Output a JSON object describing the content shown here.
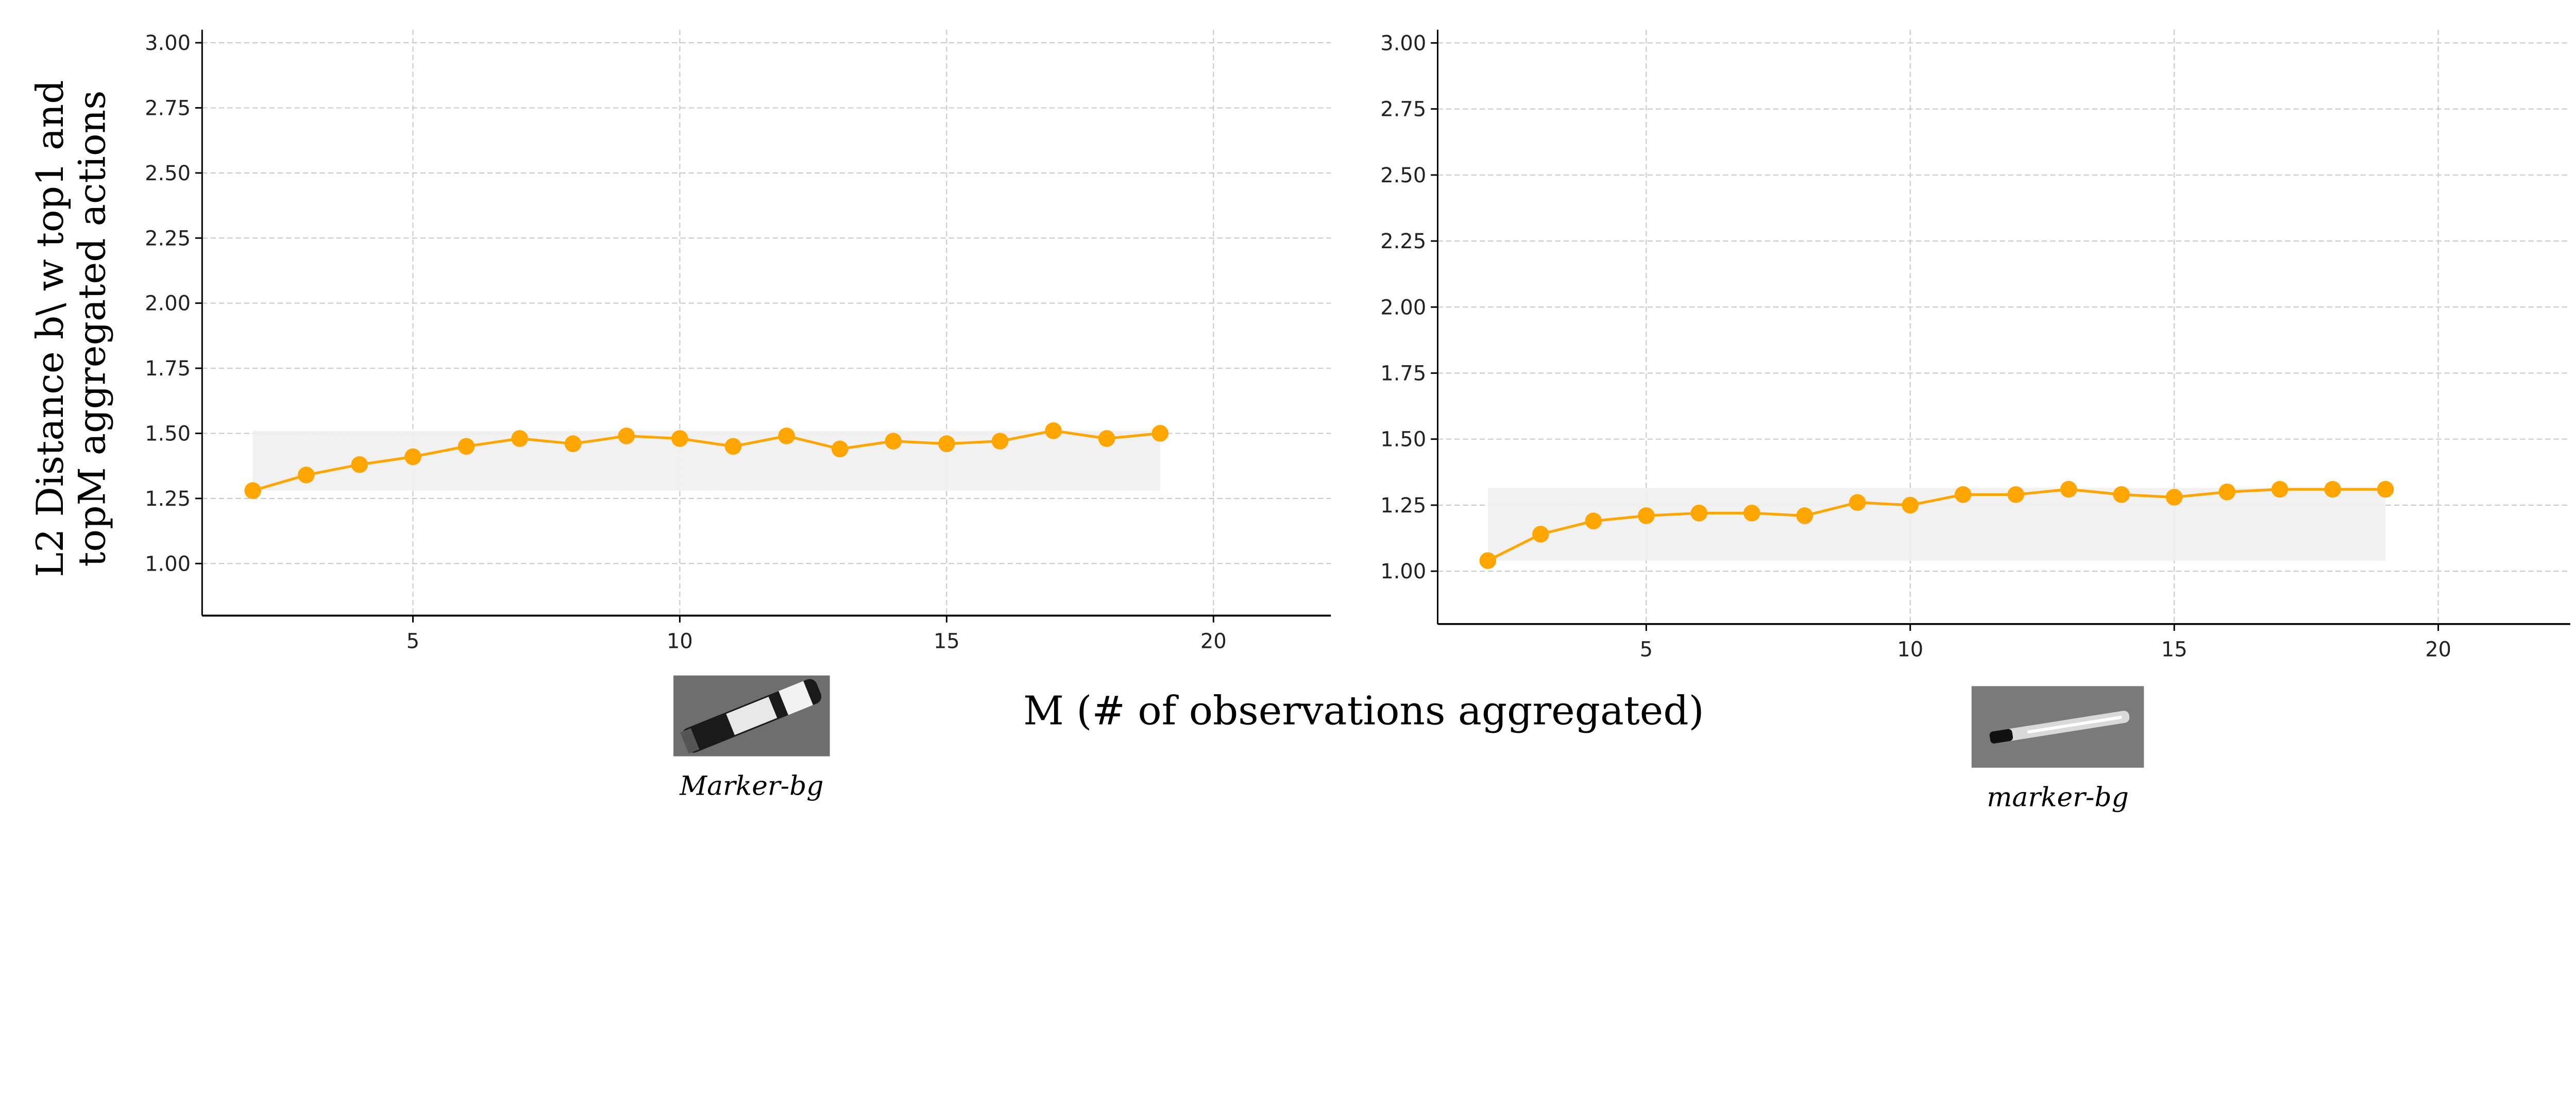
{
  "chart_data": [
    {
      "type": "line",
      "ylabel": [
        "L2 Distance b\\ w top1 and",
        "topM aggregated actions"
      ],
      "xlabel": "M (# of observations aggregated)",
      "xlim": [
        1.05,
        22.2
      ],
      "ylim": [
        0.8,
        3.05
      ],
      "xticks": [
        5,
        10,
        15,
        20
      ],
      "yticks": [
        "1.00",
        "1.25",
        "1.50",
        "1.75",
        "2.00",
        "2.25",
        "2.50",
        "2.75",
        "3.00"
      ],
      "grid": true,
      "line_color": "#FFA500",
      "band_color": "#EFEFEF",
      "x": [
        2,
        3,
        4,
        5,
        6,
        7,
        8,
        9,
        10,
        11,
        12,
        13,
        14,
        15,
        16,
        17,
        18,
        19
      ],
      "y": [
        1.28,
        1.34,
        1.38,
        1.41,
        1.45,
        1.48,
        1.46,
        1.49,
        1.48,
        1.45,
        1.49,
        1.44,
        1.47,
        1.46,
        1.47,
        1.51,
        1.48,
        1.5
      ],
      "band": {
        "x_range": [
          2,
          19
        ],
        "y_range": [
          1.28,
          1.51
        ]
      },
      "image_caption": "Marker-bg"
    },
    {
      "type": "line",
      "xlim": [
        1.05,
        22.5
      ],
      "ylim": [
        0.8,
        3.05
      ],
      "xticks": [
        5,
        10,
        15,
        20
      ],
      "yticks": [
        "1.00",
        "1.25",
        "1.50",
        "1.75",
        "2.00",
        "2.25",
        "2.50",
        "2.75",
        "3.00"
      ],
      "grid": true,
      "line_color": "#FFA500",
      "band_color": "#EFEFEF",
      "x": [
        2,
        3,
        4,
        5,
        6,
        7,
        8,
        9,
        10,
        11,
        12,
        13,
        14,
        15,
        16,
        17,
        18,
        19
      ],
      "y": [
        1.04,
        1.14,
        1.19,
        1.21,
        1.22,
        1.22,
        1.21,
        1.26,
        1.25,
        1.29,
        1.29,
        1.31,
        1.29,
        1.28,
        1.3,
        1.31,
        1.31,
        1.31
      ],
      "band": {
        "x_range": [
          2,
          19
        ],
        "y_range": [
          1.04,
          1.315
        ]
      },
      "image_caption": "marker-bg"
    }
  ]
}
